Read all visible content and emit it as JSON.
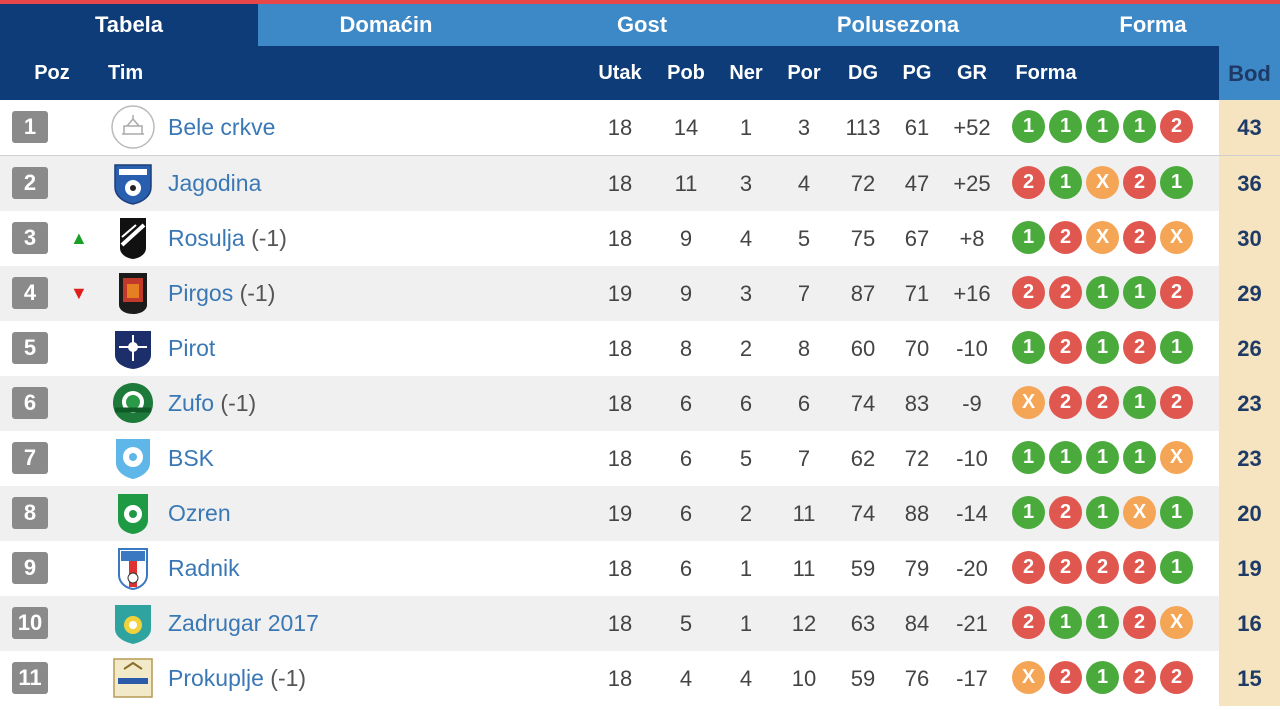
{
  "tabs": [
    "Tabela",
    "Domaćin",
    "Gost",
    "Polusezona",
    "Forma"
  ],
  "columns": {
    "poz": "Poz",
    "tim": "Tim",
    "utak": "Utak",
    "pob": "Pob",
    "ner": "Ner",
    "por": "Por",
    "dg": "DG",
    "pg": "PG",
    "gr": "GR",
    "forma": "Forma",
    "bod": "Bod"
  },
  "colors": {
    "win": "#4aaa3c",
    "loss": "#e0574f",
    "draw": "#f4a556",
    "header": "#0d3c78",
    "tab": "#3d88c6",
    "points_bg": "#f5e4bf"
  },
  "rows": [
    {
      "pos": "1",
      "trend": "",
      "team": "Bele crkve",
      "penalty": "",
      "logo": "bele-crkve-crest",
      "utak": "18",
      "pob": "14",
      "ner": "1",
      "por": "3",
      "dg": "113",
      "pg": "61",
      "gr": "+52",
      "forma": [
        "1",
        "1",
        "1",
        "1",
        "2"
      ],
      "bod": "43"
    },
    {
      "pos": "2",
      "trend": "",
      "team": "Jagodina",
      "penalty": "",
      "logo": "jagodina-crest",
      "utak": "18",
      "pob": "11",
      "ner": "3",
      "por": "4",
      "dg": "72",
      "pg": "47",
      "gr": "+25",
      "forma": [
        "2",
        "1",
        "X",
        "2",
        "1"
      ],
      "bod": "36"
    },
    {
      "pos": "3",
      "trend": "up",
      "team": "Rosulja",
      "penalty": " (-1)",
      "logo": "rosulja-crest",
      "utak": "18",
      "pob": "9",
      "ner": "4",
      "por": "5",
      "dg": "75",
      "pg": "67",
      "gr": "+8",
      "forma": [
        "1",
        "2",
        "X",
        "2",
        "X"
      ],
      "bod": "30"
    },
    {
      "pos": "4",
      "trend": "down",
      "team": "Pirgos",
      "penalty": " (-1)",
      "logo": "pirgos-crest",
      "utak": "19",
      "pob": "9",
      "ner": "3",
      "por": "7",
      "dg": "87",
      "pg": "71",
      "gr": "+16",
      "forma": [
        "2",
        "2",
        "1",
        "1",
        "2"
      ],
      "bod": "29"
    },
    {
      "pos": "5",
      "trend": "",
      "team": "Pirot",
      "penalty": "",
      "logo": "pirot-crest",
      "utak": "18",
      "pob": "8",
      "ner": "2",
      "por": "8",
      "dg": "60",
      "pg": "70",
      "gr": "-10",
      "forma": [
        "1",
        "2",
        "1",
        "2",
        "1"
      ],
      "bod": "26"
    },
    {
      "pos": "6",
      "trend": "",
      "team": "Zufo",
      "penalty": " (-1)",
      "logo": "zufo-crest",
      "utak": "18",
      "pob": "6",
      "ner": "6",
      "por": "6",
      "dg": "74",
      "pg": "83",
      "gr": "-9",
      "forma": [
        "X",
        "2",
        "2",
        "1",
        "2"
      ],
      "bod": "23"
    },
    {
      "pos": "7",
      "trend": "",
      "team": "BSK",
      "penalty": "",
      "logo": "bsk-crest",
      "utak": "18",
      "pob": "6",
      "ner": "5",
      "por": "7",
      "dg": "62",
      "pg": "72",
      "gr": "-10",
      "forma": [
        "1",
        "1",
        "1",
        "1",
        "X"
      ],
      "bod": "23"
    },
    {
      "pos": "8",
      "trend": "",
      "team": "Ozren",
      "penalty": "",
      "logo": "ozren-crest",
      "utak": "19",
      "pob": "6",
      "ner": "2",
      "por": "11",
      "dg": "74",
      "pg": "88",
      "gr": "-14",
      "forma": [
        "1",
        "2",
        "1",
        "X",
        "1"
      ],
      "bod": "20"
    },
    {
      "pos": "9",
      "trend": "",
      "team": "Radnik",
      "penalty": "",
      "logo": "radnik-crest",
      "utak": "18",
      "pob": "6",
      "ner": "1",
      "por": "11",
      "dg": "59",
      "pg": "79",
      "gr": "-20",
      "forma": [
        "2",
        "2",
        "2",
        "2",
        "1"
      ],
      "bod": "19"
    },
    {
      "pos": "10",
      "trend": "",
      "team": "Zadrugar 2017",
      "penalty": "",
      "logo": "zadrugar-crest",
      "utak": "18",
      "pob": "5",
      "ner": "1",
      "por": "12",
      "dg": "63",
      "pg": "84",
      "gr": "-21",
      "forma": [
        "2",
        "1",
        "1",
        "2",
        "X"
      ],
      "bod": "16"
    },
    {
      "pos": "11",
      "trend": "",
      "team": "Prokuplje",
      "penalty": " (-1)",
      "logo": "prokuplje-crest",
      "utak": "18",
      "pob": "4",
      "ner": "4",
      "por": "10",
      "dg": "59",
      "pg": "76",
      "gr": "-17",
      "forma": [
        "X",
        "2",
        "1",
        "2",
        "2"
      ],
      "bod": "15"
    }
  ]
}
